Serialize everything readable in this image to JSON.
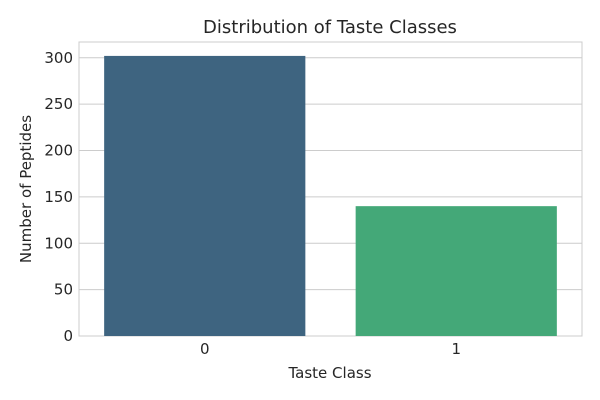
{
  "chart_data": {
    "type": "bar",
    "title": "Distribution of Taste Classes",
    "xlabel": "Taste Class",
    "ylabel": "Number of Peptides",
    "categories": [
      "0",
      "1"
    ],
    "values": [
      302,
      140
    ],
    "colors": [
      "#3e6480",
      "#44a878"
    ],
    "ylim": [
      0,
      317
    ],
    "yticks": [
      0,
      50,
      100,
      150,
      200,
      250,
      300
    ],
    "grid": "y",
    "legend": "none"
  }
}
